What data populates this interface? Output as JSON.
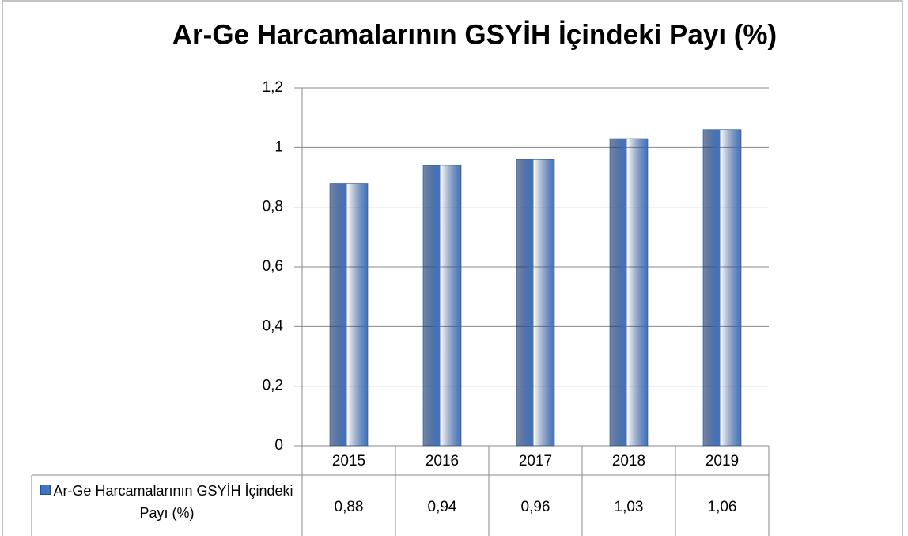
{
  "chart_data": {
    "type": "bar",
    "title": "Ar-Ge Harcamalarının GSYİH İçindeki Payı (%)",
    "categories": [
      "2015",
      "2016",
      "2017",
      "2018",
      "2019"
    ],
    "series": [
      {
        "name": "Ar-Ge Harcamalarının GSYİH İçindeki Payı (%)",
        "color": "#3f74c4",
        "values": [
          0.88,
          0.94,
          0.96,
          1.03,
          1.06
        ],
        "value_labels": [
          "0,88",
          "0,94",
          "0,96",
          "1,03",
          "1,06"
        ]
      }
    ],
    "ylim": [
      0,
      1.2
    ],
    "yticks": [
      0,
      {
        "value": 0.2,
        "label": "0,2"
      },
      {
        "value": 0.4,
        "label": "0,4"
      },
      {
        "value": 0.6,
        "label": "0,6"
      },
      {
        "value": 0.8,
        "label": "0,8"
      },
      1,
      {
        "value": 1.2,
        "label": "1,2"
      }
    ],
    "grid": true,
    "data_table": true
  }
}
